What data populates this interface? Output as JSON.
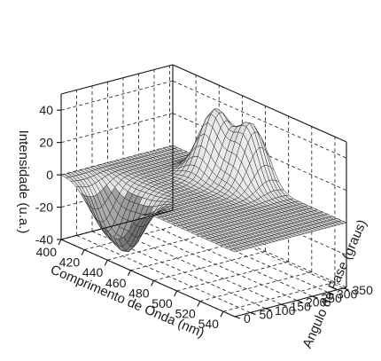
{
  "chart_data": {
    "type": "surface",
    "xlabel": "Comprimento de Onda (nm)",
    "ylabel": "Angulo de Fase (graus)",
    "zlabel": "Intensidade (u.a.)",
    "x_ticks": [
      "400",
      "420",
      "440",
      "460",
      "480",
      "500",
      "520",
      "540"
    ],
    "y_ticks": [
      "0",
      "50",
      "100",
      "150",
      "200",
      "250",
      "300",
      "350"
    ],
    "z_ticks": [
      "-40",
      "-20",
      "0",
      "20",
      "40"
    ],
    "xlim": [
      400,
      550
    ],
    "ylim": [
      0,
      360
    ],
    "zlim": [
      -40,
      50
    ],
    "grid": true,
    "surface_peaks": [
      {
        "x_nm": 450,
        "y_deg": 310,
        "z": 40
      },
      {
        "x_nm": 475,
        "y_deg": 330,
        "z": 38
      },
      {
        "x_nm": 430,
        "y_deg": 40,
        "z": -25
      },
      {
        "x_nm": 450,
        "y_deg": 30,
        "z": -30
      }
    ]
  }
}
